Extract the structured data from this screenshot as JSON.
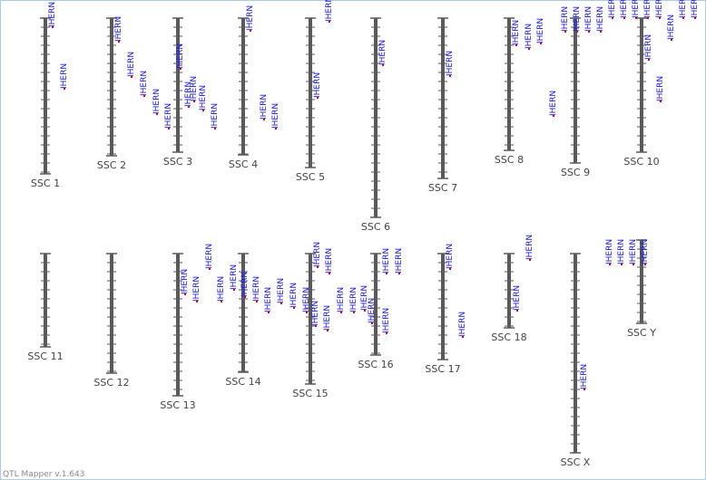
{
  "chromosomes": [
    {
      "name": "SSC 1",
      "qtls": [
        "IHERN",
        "IHERN"
      ]
    },
    {
      "name": "SSC 2",
      "qtls": [
        "IHERN",
        "IHERN",
        "IHERN",
        "IHERN",
        "IHERN"
      ]
    },
    {
      "name": "SSC 3",
      "qtls": [
        "IHERN",
        "IHERN",
        "IHERN",
        "IHERN",
        "IHERN"
      ]
    },
    {
      "name": "SSC 4",
      "qtls": [
        "IHERN",
        "IHERN",
        "IHERN"
      ]
    },
    {
      "name": "SSC 5",
      "qtls": [
        "IHERN",
        "IHERN"
      ]
    },
    {
      "name": "SSC 6",
      "qtls": [
        "IHERN"
      ]
    },
    {
      "name": "SSC 7",
      "qtls": [
        "IHERN"
      ]
    },
    {
      "name": "SSC 8",
      "qtls": [
        "IHERN",
        "IHERN",
        "IHERN",
        "IHERN"
      ]
    },
    {
      "name": "SSC 9",
      "qtls": [
        "IHERN",
        "IHERN",
        "IHERN",
        "IHERN",
        "IHERN",
        "IHERN"
      ]
    },
    {
      "name": "SSC 10",
      "qtls": [
        "IHERN",
        "IHERN",
        "IHERN",
        "IHERN",
        "IHERN",
        "IHERN",
        "IHERN",
        "IHERN"
      ]
    },
    {
      "name": "SSC 11",
      "qtls": []
    },
    {
      "name": "SSC 12",
      "qtls": []
    },
    {
      "name": "SSC 13",
      "qtls": [
        "IHERN",
        "IHERN",
        "IHERN",
        "IHERN"
      ]
    },
    {
      "name": "SSC 14",
      "qtls": [
        "IHERN",
        "IHERN",
        "IHERN",
        "IHERN",
        "IHERN",
        "IHERN"
      ]
    },
    {
      "name": "SSC 15",
      "qtls": [
        "IHERN",
        "IHERN",
        "IHERN",
        "IHERN",
        "IHERN",
        "IHERN",
        "IHERN",
        "IHERN",
        "IHERN"
      ]
    },
    {
      "name": "SSC 16",
      "qtls": [
        "IHERN",
        "IHERN",
        "IHERN"
      ]
    },
    {
      "name": "SSC 17",
      "qtls": [
        "IHERN",
        "IHERN"
      ]
    },
    {
      "name": "SSC 18",
      "qtls": [
        "IHERN",
        "IHERN"
      ]
    },
    {
      "name": "SSC X",
      "qtls": [
        "IHERN"
      ]
    },
    {
      "name": "SSC Y",
      "qtls": [
        "IHERN",
        "IHERN",
        "IHERN",
        "IHERN"
      ]
    }
  ],
  "footer": "QTL Mapper v.1.643"
}
